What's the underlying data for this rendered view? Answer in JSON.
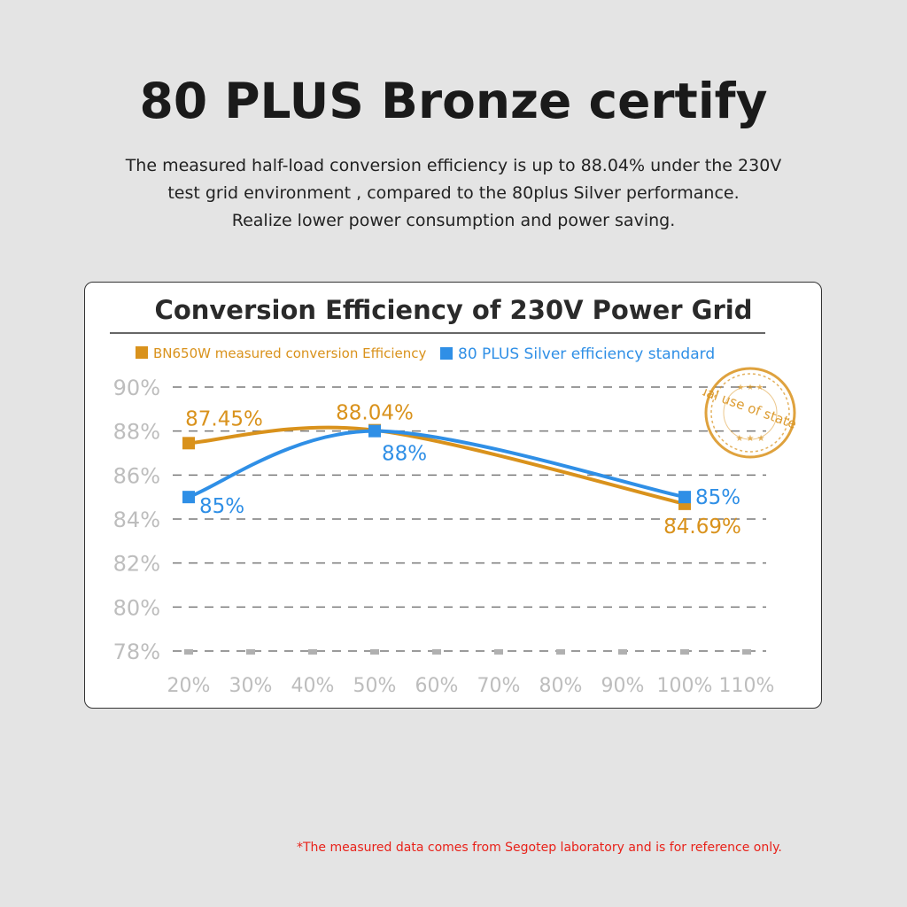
{
  "header": {
    "title": "80 PLUS Bronze certify",
    "description": [
      "The measured half-load conversion efficiency is up to 88.04% under the 230V",
      "test grid environment , compared to the 80plus Silver performance.",
      "Realize lower power consumption and power saving."
    ]
  },
  "stamp": {
    "text": "Actual use of state grid",
    "color": "#d9921c"
  },
  "footnote": "*The measured data comes from Segotep laboratory and is for reference only.",
  "colors": {
    "bronze": "#d9921c",
    "silver": "#2f8fe6",
    "grid": "#7a7a7a",
    "tick_text": "#bdbdbd"
  },
  "chart_data": {
    "type": "line",
    "title": "Conversion Efficiency of 230V Power Grid",
    "xlabel": "",
    "ylabel": "",
    "x": [
      "20%",
      "30%",
      "40%",
      "50%",
      "60%",
      "70%",
      "80%",
      "90%",
      "100%",
      "110%"
    ],
    "x_values": [
      20,
      30,
      40,
      50,
      60,
      70,
      80,
      90,
      100,
      110
    ],
    "y_ticks": [
      "78%",
      "80%",
      "82%",
      "84%",
      "86%",
      "88%",
      "90%"
    ],
    "ylim": [
      78,
      90
    ],
    "grid": "horizontal dashed",
    "legend_position": "top",
    "series": [
      {
        "name": "BN650W measured conversion Efficiency",
        "color": "#d9921c",
        "points": [
          {
            "x": 20,
            "y": 87.45,
            "label": "87.45%"
          },
          {
            "x": 50,
            "y": 88.04,
            "label": "88.04%"
          },
          {
            "x": 100,
            "y": 84.69,
            "label": "84.69%"
          }
        ]
      },
      {
        "name": "80 PLUS Silver efficiency standard",
        "color": "#2f8fe6",
        "points": [
          {
            "x": 20,
            "y": 85,
            "label": "85%"
          },
          {
            "x": 50,
            "y": 88,
            "label": "88%"
          },
          {
            "x": 100,
            "y": 85,
            "label": "85%"
          }
        ]
      }
    ]
  }
}
